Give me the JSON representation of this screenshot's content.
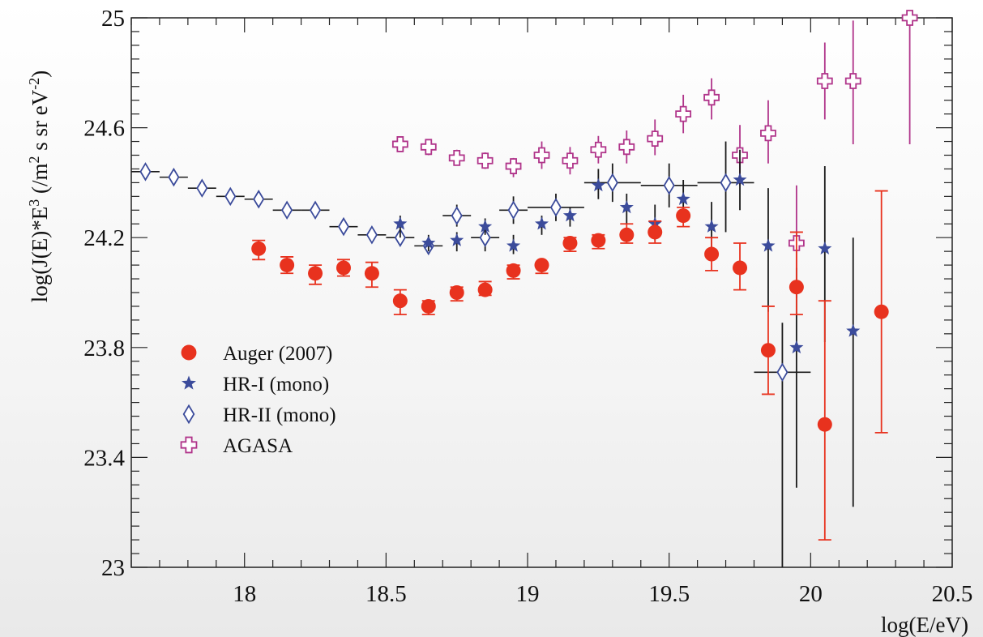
{
  "chart_data": {
    "type": "scatter",
    "xlabel": "log(E/eV)",
    "ylabel": "log(J(E)*E^3 (/m^2 s sr eV^-2)",
    "xlim": [
      17.6,
      20.5
    ],
    "ylim": [
      23,
      25
    ],
    "x_ticks": [
      "18",
      "18.5",
      "19",
      "19.5",
      "20",
      "20.5"
    ],
    "x_tick_values": [
      18,
      18.5,
      19,
      19.5,
      20,
      20.5
    ],
    "y_ticks": [
      "23",
      "23.4",
      "23.8",
      "24.2",
      "24.6",
      "25"
    ],
    "y_tick_values": [
      23,
      23.4,
      23.8,
      24.2,
      24.6,
      25
    ],
    "legend_position": "left-middle",
    "series": [
      {
        "name": "Auger (2007)",
        "marker": "filled-circle",
        "color": "#e8321e",
        "points": [
          {
            "x": 18.05,
            "y": 24.16,
            "lo": 24.12,
            "hi": 24.19
          },
          {
            "x": 18.15,
            "y": 24.1,
            "lo": 24.07,
            "hi": 24.13
          },
          {
            "x": 18.25,
            "y": 24.07,
            "lo": 24.03,
            "hi": 24.1
          },
          {
            "x": 18.35,
            "y": 24.09,
            "lo": 24.06,
            "hi": 24.12
          },
          {
            "x": 18.45,
            "y": 24.07,
            "lo": 24.02,
            "hi": 24.11
          },
          {
            "x": 18.55,
            "y": 23.97,
            "lo": 23.92,
            "hi": 24.01
          },
          {
            "x": 18.65,
            "y": 23.95,
            "lo": 23.92,
            "hi": 23.97
          },
          {
            "x": 18.75,
            "y": 24.0,
            "lo": 23.97,
            "hi": 24.02
          },
          {
            "x": 18.85,
            "y": 24.01,
            "lo": 23.99,
            "hi": 24.04
          },
          {
            "x": 18.95,
            "y": 24.08,
            "lo": 24.05,
            "hi": 24.1
          },
          {
            "x": 19.05,
            "y": 24.1,
            "lo": 24.07,
            "hi": 24.11
          },
          {
            "x": 19.15,
            "y": 24.18,
            "lo": 24.15,
            "hi": 24.2
          },
          {
            "x": 19.25,
            "y": 24.19,
            "lo": 24.16,
            "hi": 24.21
          },
          {
            "x": 19.35,
            "y": 24.21,
            "lo": 24.18,
            "hi": 24.25
          },
          {
            "x": 19.45,
            "y": 24.22,
            "lo": 24.18,
            "hi": 24.26
          },
          {
            "x": 19.55,
            "y": 24.28,
            "lo": 24.24,
            "hi": 24.31
          },
          {
            "x": 19.65,
            "y": 24.14,
            "lo": 24.08,
            "hi": 24.2
          },
          {
            "x": 19.75,
            "y": 24.09,
            "lo": 24.01,
            "hi": 24.18
          },
          {
            "x": 19.85,
            "y": 23.79,
            "lo": 23.63,
            "hi": 23.95
          },
          {
            "x": 19.95,
            "y": 24.02,
            "lo": 23.92,
            "hi": 24.22
          },
          {
            "x": 20.05,
            "y": 23.52,
            "lo": 23.1,
            "hi": 23.97
          },
          {
            "x": 20.25,
            "y": 23.93,
            "lo": 23.49,
            "hi": 24.37
          }
        ]
      },
      {
        "name": "HR-I (mono)",
        "marker": "star",
        "color": "#3b4b9b",
        "points": [
          {
            "x": 18.55,
            "y": 24.25,
            "lo": 24.2,
            "hi": 24.28
          },
          {
            "x": 18.65,
            "y": 24.18,
            "lo": 24.15,
            "hi": 24.21
          },
          {
            "x": 18.75,
            "y": 24.19,
            "lo": 24.15,
            "hi": 24.22
          },
          {
            "x": 18.85,
            "y": 24.24,
            "lo": 24.21,
            "hi": 24.27
          },
          {
            "x": 18.95,
            "y": 24.17,
            "lo": 24.14,
            "hi": 24.21
          },
          {
            "x": 19.05,
            "y": 24.25,
            "lo": 24.21,
            "hi": 24.28
          },
          {
            "x": 19.15,
            "y": 24.28,
            "lo": 24.24,
            "hi": 24.31
          },
          {
            "x": 19.25,
            "y": 24.39,
            "lo": 24.34,
            "hi": 24.45
          },
          {
            "x": 19.35,
            "y": 24.31,
            "lo": 24.25,
            "hi": 24.36
          },
          {
            "x": 19.45,
            "y": 24.25,
            "lo": 24.19,
            "hi": 24.32
          },
          {
            "x": 19.55,
            "y": 24.34,
            "lo": 24.27,
            "hi": 24.41
          },
          {
            "x": 19.65,
            "y": 24.24,
            "lo": 24.13,
            "hi": 24.33
          },
          {
            "x": 19.75,
            "y": 24.41,
            "lo": 24.3,
            "hi": 24.52
          },
          {
            "x": 19.85,
            "y": 24.17,
            "lo": 23.93,
            "hi": 24.38
          },
          {
            "x": 19.95,
            "y": 23.8,
            "lo": 23.29,
            "hi": 24.09
          },
          {
            "x": 20.05,
            "y": 24.16,
            "lo": 23.82,
            "hi": 24.46
          },
          {
            "x": 20.15,
            "y": 23.86,
            "lo": 23.22,
            "hi": 24.2
          }
        ]
      },
      {
        "name": "HR-II (mono)",
        "marker": "open-diamond",
        "color": "#3b4b9b",
        "points": [
          {
            "x": 17.65,
            "y": 24.44,
            "xlo": 17.6,
            "xhi": 17.7
          },
          {
            "x": 17.75,
            "y": 24.42,
            "xlo": 17.7,
            "xhi": 17.8
          },
          {
            "x": 17.85,
            "y": 24.38,
            "xlo": 17.8,
            "xhi": 17.9
          },
          {
            "x": 17.95,
            "y": 24.35,
            "xlo": 17.9,
            "xhi": 18.0
          },
          {
            "x": 18.05,
            "y": 24.34,
            "xlo": 18.0,
            "xhi": 18.1
          },
          {
            "x": 18.15,
            "y": 24.3,
            "xlo": 18.1,
            "xhi": 18.2
          },
          {
            "x": 18.25,
            "y": 24.3,
            "xlo": 18.2,
            "xhi": 18.3
          },
          {
            "x": 18.35,
            "y": 24.24,
            "xlo": 18.3,
            "xhi": 18.4
          },
          {
            "x": 18.45,
            "y": 24.21,
            "xlo": 18.4,
            "xhi": 18.5
          },
          {
            "x": 18.55,
            "y": 24.2,
            "xlo": 18.5,
            "xhi": 18.6
          },
          {
            "x": 18.65,
            "y": 24.17,
            "xlo": 18.6,
            "xhi": 18.7,
            "lo": 24.14,
            "hi": 24.2
          },
          {
            "x": 18.75,
            "y": 24.28,
            "xlo": 18.7,
            "xhi": 18.8,
            "lo": 24.24,
            "hi": 24.32
          },
          {
            "x": 18.85,
            "y": 24.2,
            "xlo": 18.8,
            "xhi": 18.9,
            "lo": 24.15,
            "hi": 24.25
          },
          {
            "x": 18.95,
            "y": 24.3,
            "xlo": 18.9,
            "xhi": 19.0,
            "lo": 24.25,
            "hi": 24.35
          },
          {
            "x": 19.1,
            "y": 24.31,
            "xlo": 19.0,
            "xhi": 19.2,
            "lo": 24.26,
            "hi": 24.36
          },
          {
            "x": 19.3,
            "y": 24.4,
            "xlo": 19.2,
            "xhi": 19.4,
            "lo": 24.33,
            "hi": 24.47
          },
          {
            "x": 19.5,
            "y": 24.39,
            "xlo": 19.4,
            "xhi": 19.6,
            "lo": 24.31,
            "hi": 24.47
          },
          {
            "x": 19.7,
            "y": 24.4,
            "xlo": 19.6,
            "xhi": 19.8,
            "lo": 24.22,
            "hi": 24.55
          },
          {
            "x": 19.9,
            "y": 23.71,
            "xlo": 19.8,
            "xhi": 20.0,
            "lo": 23.0,
            "hi": 23.89
          }
        ]
      },
      {
        "name": "AGASA",
        "marker": "open-cross",
        "color": "#b0348a",
        "points": [
          {
            "x": 18.55,
            "y": 24.54,
            "lo": 24.52,
            "hi": 24.56
          },
          {
            "x": 18.65,
            "y": 24.53,
            "lo": 24.5,
            "hi": 24.55
          },
          {
            "x": 18.75,
            "y": 24.49,
            "lo": 24.47,
            "hi": 24.52
          },
          {
            "x": 18.85,
            "y": 24.48,
            "lo": 24.45,
            "hi": 24.51
          },
          {
            "x": 18.95,
            "y": 24.46,
            "lo": 24.42,
            "hi": 24.49
          },
          {
            "x": 19.05,
            "y": 24.5,
            "lo": 24.45,
            "hi": 24.55
          },
          {
            "x": 19.15,
            "y": 24.48,
            "lo": 24.43,
            "hi": 24.53
          },
          {
            "x": 19.25,
            "y": 24.52,
            "lo": 24.47,
            "hi": 24.57
          },
          {
            "x": 19.35,
            "y": 24.53,
            "lo": 24.47,
            "hi": 24.59
          },
          {
            "x": 19.45,
            "y": 24.56,
            "lo": 24.5,
            "hi": 24.63
          },
          {
            "x": 19.55,
            "y": 24.65,
            "lo": 24.58,
            "hi": 24.72
          },
          {
            "x": 19.65,
            "y": 24.71,
            "lo": 24.63,
            "hi": 24.78
          },
          {
            "x": 19.75,
            "y": 24.5,
            "lo": 24.39,
            "hi": 24.61
          },
          {
            "x": 19.85,
            "y": 24.58,
            "lo": 24.47,
            "hi": 24.7
          },
          {
            "x": 19.95,
            "y": 24.18,
            "lo": 23.98,
            "hi": 24.39
          },
          {
            "x": 20.05,
            "y": 24.77,
            "lo": 24.63,
            "hi": 24.91
          },
          {
            "x": 20.15,
            "y": 24.77,
            "lo": 24.54,
            "hi": 24.99
          },
          {
            "x": 20.35,
            "y": 25.0,
            "lo": 24.54,
            "hi": 25.0
          }
        ]
      }
    ]
  }
}
